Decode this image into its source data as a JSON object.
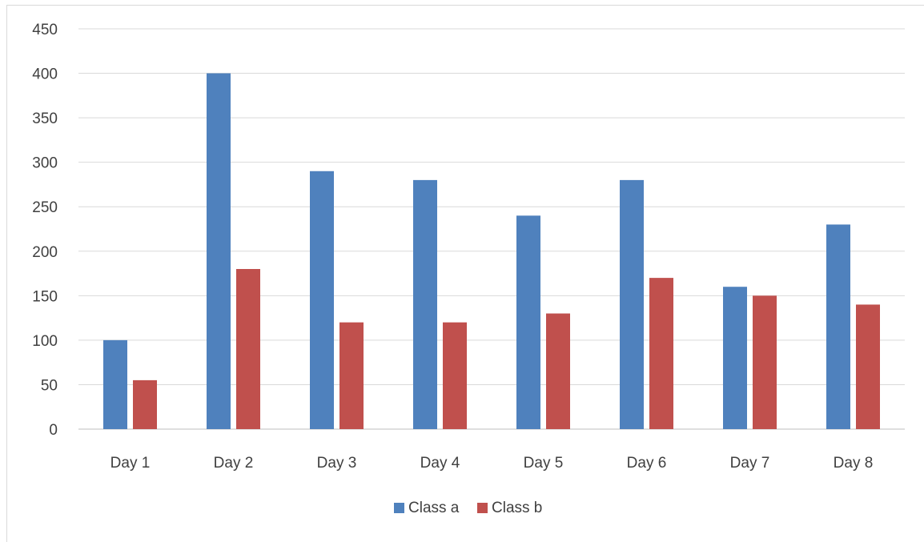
{
  "chart_data": {
    "type": "bar",
    "categories": [
      "Day 1",
      "Day 2",
      "Day 3",
      "Day 4",
      "Day 5",
      "Day 6",
      "Day 7",
      "Day 8"
    ],
    "series": [
      {
        "name": "Class a",
        "color": "#4f81bd",
        "values": [
          100,
          400,
          290,
          280,
          240,
          280,
          160,
          230
        ]
      },
      {
        "name": "Class b",
        "color": "#c0504d",
        "values": [
          55,
          180,
          120,
          120,
          130,
          170,
          150,
          140
        ]
      }
    ],
    "title": "",
    "xlabel": "",
    "ylabel": "",
    "ylim": [
      0,
      450
    ],
    "yticks": [
      "0",
      "50",
      "100",
      "150",
      "200",
      "250",
      "300",
      "350",
      "400",
      "450"
    ],
    "grid": true,
    "legend_position": "bottom"
  }
}
